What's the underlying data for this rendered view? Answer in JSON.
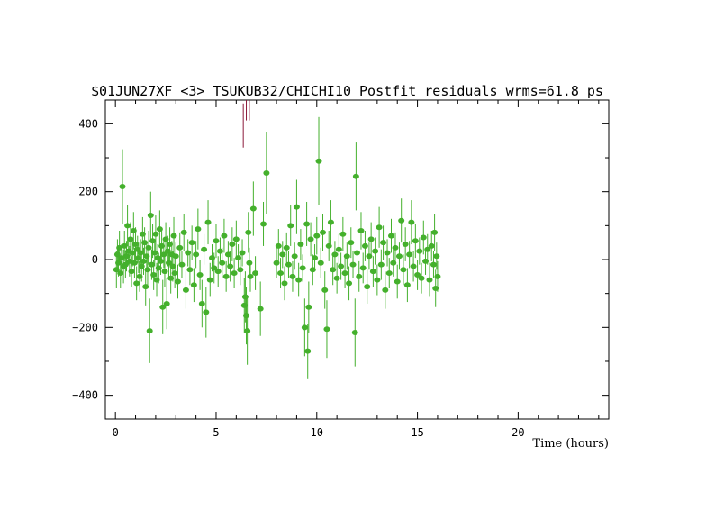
{
  "chart_data": {
    "type": "scatter",
    "title": "$01JUN27XF <3> TSUKUB32/CHICHI10 Postfit residuals wrms=61.8  ps",
    "xlabel": "Time (hours)",
    "ylabel": "",
    "xlim": [
      -0.5,
      24.5
    ],
    "ylim": [
      -470,
      470
    ],
    "x_ticks": [
      0,
      5,
      10,
      15,
      20
    ],
    "x_tick_labels": [
      "0",
      "5",
      "10",
      "15",
      "20"
    ],
    "y_ticks": [
      -400,
      -200,
      0,
      200,
      400
    ],
    "y_tick_labels": [
      "−400",
      "−200",
      "0",
      "200",
      "400"
    ],
    "grid": false,
    "colors": {
      "good": "#44b02c",
      "outlier": "#8b1a3a",
      "axes": "#000000"
    },
    "series": [
      {
        "values": [
          [
            0.05,
            -30,
            55
          ],
          [
            0.1,
            15,
            45
          ],
          [
            0.15,
            -10,
            40
          ],
          [
            0.2,
            35,
            50
          ],
          [
            0.25,
            -40,
            45
          ],
          [
            0.3,
            5,
            40
          ],
          [
            0.35,
            215,
            110
          ],
          [
            0.4,
            -20,
            50
          ],
          [
            0.45,
            40,
            45
          ],
          [
            0.5,
            -15,
            40
          ],
          [
            0.55,
            10,
            45
          ],
          [
            0.6,
            100,
            60
          ],
          [
            0.65,
            25,
            40
          ],
          [
            0.7,
            -5,
            45
          ],
          [
            0.75,
            60,
            50
          ],
          [
            0.8,
            -35,
            45
          ],
          [
            0.85,
            20,
            40
          ],
          [
            0.9,
            85,
            55
          ],
          [
            0.95,
            -10,
            45
          ],
          [
            1.0,
            45,
            50
          ],
          [
            1.05,
            -70,
            50
          ],
          [
            1.1,
            30,
            40
          ],
          [
            1.15,
            5,
            45
          ],
          [
            1.2,
            -50,
            45
          ],
          [
            1.25,
            20,
            40
          ],
          [
            1.3,
            -20,
            45
          ],
          [
            1.35,
            75,
            50
          ],
          [
            1.4,
            -5,
            40
          ],
          [
            1.45,
            50,
            45
          ],
          [
            1.5,
            -80,
            55
          ],
          [
            1.55,
            10,
            40
          ],
          [
            1.6,
            -30,
            45
          ],
          [
            1.65,
            35,
            50
          ],
          [
            1.7,
            -210,
            95
          ],
          [
            1.75,
            130,
            70
          ],
          [
            1.8,
            -15,
            45
          ],
          [
            1.85,
            55,
            50
          ],
          [
            1.9,
            -45,
            45
          ],
          [
            1.95,
            20,
            40
          ],
          [
            2.0,
            75,
            55
          ],
          [
            2.05,
            -60,
            50
          ],
          [
            2.1,
            5,
            40
          ],
          [
            2.15,
            -25,
            45
          ],
          [
            2.2,
            90,
            55
          ],
          [
            2.25,
            -5,
            40
          ],
          [
            2.3,
            40,
            45
          ],
          [
            2.35,
            -140,
            80
          ],
          [
            2.4,
            15,
            40
          ],
          [
            2.45,
            -35,
            45
          ],
          [
            2.5,
            60,
            50
          ],
          [
            2.55,
            -130,
            75
          ],
          [
            2.6,
            25,
            45
          ],
          [
            2.65,
            -10,
            40
          ],
          [
            2.7,
            45,
            50
          ],
          [
            2.75,
            -55,
            45
          ],
          [
            2.8,
            15,
            40
          ],
          [
            2.85,
            -20,
            45
          ],
          [
            2.9,
            70,
            55
          ],
          [
            2.95,
            -40,
            45
          ],
          [
            3.0,
            10,
            40
          ],
          [
            3.1,
            -65,
            50
          ],
          [
            3.2,
            35,
            45
          ],
          [
            3.3,
            -15,
            40
          ],
          [
            3.4,
            80,
            55
          ],
          [
            3.5,
            -90,
            55
          ],
          [
            3.6,
            20,
            40
          ],
          [
            3.7,
            -30,
            45
          ],
          [
            3.8,
            50,
            50
          ],
          [
            3.9,
            -75,
            50
          ],
          [
            4.0,
            15,
            40
          ],
          [
            4.1,
            90,
            60
          ],
          [
            4.2,
            -45,
            45
          ],
          [
            4.3,
            -130,
            70
          ],
          [
            4.4,
            30,
            45
          ],
          [
            4.5,
            -155,
            75
          ],
          [
            4.6,
            110,
            65
          ],
          [
            4.7,
            -60,
            50
          ],
          [
            4.8,
            5,
            40
          ],
          [
            4.9,
            -25,
            45
          ],
          [
            5.0,
            55,
            50
          ],
          [
            5.1,
            -35,
            45
          ],
          [
            5.2,
            25,
            40
          ],
          [
            5.3,
            -10,
            45
          ],
          [
            5.4,
            70,
            50
          ],
          [
            5.5,
            -50,
            45
          ],
          [
            5.6,
            15,
            40
          ],
          [
            5.7,
            -20,
            45
          ],
          [
            5.8,
            45,
            50
          ],
          [
            5.9,
            -40,
            45
          ],
          [
            6.0,
            60,
            55
          ],
          [
            6.1,
            5,
            40
          ],
          [
            6.2,
            -30,
            45
          ],
          [
            6.3,
            20,
            40
          ],
          [
            6.4,
            -135,
            80
          ],
          [
            6.45,
            -110,
            75
          ],
          [
            6.5,
            -165,
            85
          ],
          [
            6.55,
            -210,
            100
          ],
          [
            6.6,
            80,
            60
          ],
          [
            6.65,
            -10,
            45
          ],
          [
            6.7,
            -50,
            45
          ],
          [
            6.85,
            150,
            80
          ],
          [
            6.95,
            -40,
            50
          ],
          [
            7.2,
            -145,
            80
          ],
          [
            7.35,
            105,
            65
          ],
          [
            7.5,
            255,
            120
          ],
          [
            8.0,
            -10,
            45
          ],
          [
            8.1,
            40,
            50
          ],
          [
            8.2,
            -40,
            45
          ],
          [
            8.3,
            15,
            40
          ],
          [
            8.4,
            -70,
            50
          ],
          [
            8.5,
            35,
            45
          ],
          [
            8.6,
            -15,
            40
          ],
          [
            8.7,
            100,
            60
          ],
          [
            8.8,
            -50,
            45
          ],
          [
            8.9,
            10,
            40
          ],
          [
            9.0,
            155,
            80
          ],
          [
            9.1,
            -60,
            50
          ],
          [
            9.2,
            45,
            45
          ],
          [
            9.3,
            -25,
            40
          ],
          [
            9.4,
            -200,
            85
          ],
          [
            9.5,
            105,
            65
          ],
          [
            9.55,
            -270,
            80
          ],
          [
            9.6,
            -140,
            75
          ],
          [
            9.7,
            60,
            50
          ],
          [
            9.8,
            -30,
            45
          ],
          [
            9.9,
            5,
            40
          ],
          [
            10.0,
            70,
            55
          ],
          [
            10.1,
            290,
            130
          ],
          [
            10.2,
            -10,
            45
          ],
          [
            10.3,
            80,
            55
          ],
          [
            10.4,
            -90,
            55
          ],
          [
            10.5,
            -205,
            85
          ],
          [
            10.6,
            40,
            45
          ],
          [
            10.7,
            110,
            65
          ],
          [
            10.8,
            -30,
            45
          ],
          [
            10.9,
            15,
            40
          ],
          [
            11.0,
            -55,
            45
          ],
          [
            11.1,
            30,
            45
          ],
          [
            11.2,
            -20,
            40
          ],
          [
            11.3,
            75,
            50
          ],
          [
            11.4,
            -40,
            45
          ],
          [
            11.5,
            10,
            40
          ],
          [
            11.6,
            -70,
            50
          ],
          [
            11.7,
            50,
            45
          ],
          [
            11.8,
            -15,
            40
          ],
          [
            11.9,
            -215,
            100
          ],
          [
            11.95,
            245,
            100
          ],
          [
            12.0,
            20,
            45
          ],
          [
            12.1,
            -50,
            45
          ],
          [
            12.2,
            85,
            55
          ],
          [
            12.3,
            -25,
            45
          ],
          [
            12.4,
            40,
            45
          ],
          [
            12.5,
            -80,
            50
          ],
          [
            12.6,
            10,
            40
          ],
          [
            12.7,
            60,
            50
          ],
          [
            12.8,
            -35,
            45
          ],
          [
            12.9,
            25,
            40
          ],
          [
            13.0,
            -60,
            45
          ],
          [
            13.1,
            95,
            60
          ],
          [
            13.2,
            -15,
            45
          ],
          [
            13.3,
            50,
            50
          ],
          [
            13.4,
            -90,
            55
          ],
          [
            13.5,
            20,
            40
          ],
          [
            13.6,
            -40,
            45
          ],
          [
            13.7,
            70,
            50
          ],
          [
            13.8,
            -10,
            40
          ],
          [
            13.9,
            35,
            45
          ],
          [
            14.0,
            -65,
            50
          ],
          [
            14.1,
            10,
            40
          ],
          [
            14.2,
            115,
            65
          ],
          [
            14.3,
            -30,
            45
          ],
          [
            14.4,
            45,
            50
          ],
          [
            14.5,
            -75,
            50
          ],
          [
            14.6,
            15,
            40
          ],
          [
            14.7,
            110,
            65
          ],
          [
            14.8,
            -20,
            45
          ],
          [
            14.9,
            55,
            50
          ],
          [
            15.0,
            -45,
            45
          ],
          [
            15.1,
            25,
            40
          ],
          [
            15.2,
            -55,
            45
          ],
          [
            15.3,
            65,
            50
          ],
          [
            15.4,
            -5,
            40
          ],
          [
            15.5,
            30,
            45
          ],
          [
            15.6,
            -60,
            50
          ],
          [
            15.7,
            40,
            45
          ],
          [
            15.8,
            -15,
            40
          ],
          [
            15.85,
            80,
            55
          ],
          [
            15.9,
            -85,
            55
          ],
          [
            15.95,
            10,
            40
          ],
          [
            16.0,
            -50,
            45
          ]
        ]
      },
      {
        "values": [
          [
            6.35,
            395,
            65
          ],
          [
            6.5,
            450,
            40
          ],
          [
            6.65,
            450,
            40
          ]
        ]
      }
    ]
  }
}
